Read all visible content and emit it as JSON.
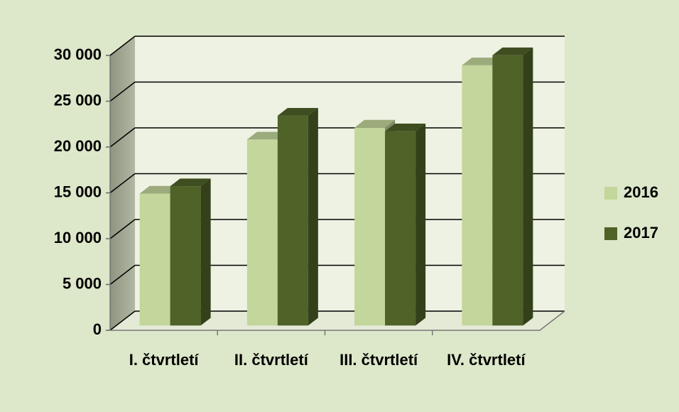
{
  "chart_data": {
    "type": "bar3d",
    "categories": [
      "I. čtvrtletí",
      "II. čtvrtletí",
      "III. čtvrtletí",
      "IV. čtvrtletí"
    ],
    "series": [
      {
        "name": "2016",
        "color": "#c3d69b",
        "values": [
          14400,
          20300,
          21600,
          28400
        ]
      },
      {
        "name": "2017",
        "color": "#4f6228",
        "values": [
          15200,
          22900,
          21200,
          29500
        ]
      }
    ],
    "ylim": [
      0,
      30000
    ],
    "yticks": [
      {
        "value": 0,
        "label": "0"
      },
      {
        "value": 5000,
        "label": "5 000"
      },
      {
        "value": 10000,
        "label": "10 000"
      },
      {
        "value": 15000,
        "label": "15 000"
      },
      {
        "value": 20000,
        "label": "20 000"
      },
      {
        "value": 25000,
        "label": "25 000"
      },
      {
        "value": 30000,
        "label": "30 000"
      }
    ],
    "grid": true,
    "legend": "right"
  }
}
